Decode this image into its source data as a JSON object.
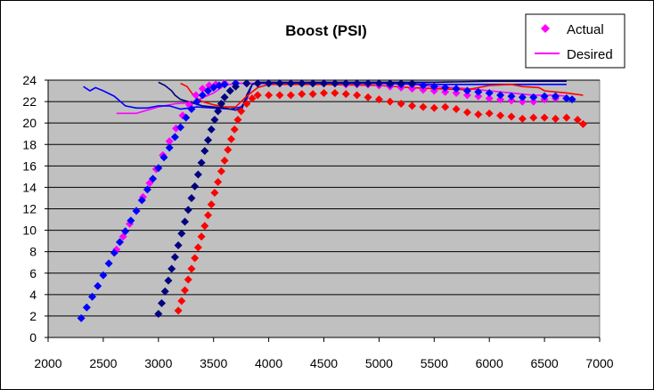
{
  "chart_data": {
    "type": "scatter",
    "title": "Boost (PSI)",
    "xlim": [
      2000,
      7000
    ],
    "ylim": [
      0,
      24
    ],
    "x_ticks": [
      "2000",
      "2500",
      "3000",
      "3500",
      "4000",
      "4500",
      "5000",
      "5500",
      "6000",
      "6500",
      "7000"
    ],
    "y_ticks": [
      "0",
      "2",
      "4",
      "6",
      "8",
      "10",
      "12",
      "14",
      "16",
      "18",
      "20",
      "22",
      "24"
    ],
    "grid": "horizontal",
    "plot_background": "#c0c0c0",
    "legend": {
      "position": "top-right",
      "entries": [
        {
          "label": "Actual",
          "marker": "diamond",
          "color": "#ff00ff"
        },
        {
          "label": "Desired",
          "marker": "line",
          "color": "#ff00ff"
        }
      ]
    },
    "series": [
      {
        "role": "actual",
        "color": "#ff00ff",
        "points": [
          [
            2620,
            8.2
          ],
          [
            2680,
            9.4
          ],
          [
            2740,
            10.6
          ],
          [
            2800,
            11.8
          ],
          [
            2860,
            13.1
          ],
          [
            2920,
            14.4
          ],
          [
            2980,
            15.7
          ],
          [
            3040,
            17.0
          ],
          [
            3100,
            18.3
          ],
          [
            3160,
            19.5
          ],
          [
            3220,
            20.7
          ],
          [
            3280,
            21.7
          ],
          [
            3340,
            22.6
          ],
          [
            3400,
            23.2
          ],
          [
            3460,
            23.5
          ],
          [
            3520,
            23.6
          ],
          [
            3600,
            23.7
          ],
          [
            3700,
            23.7
          ],
          [
            3800,
            23.7
          ],
          [
            3900,
            23.7
          ],
          [
            4000,
            23.7
          ],
          [
            4100,
            23.7
          ],
          [
            4200,
            23.7
          ],
          [
            4300,
            23.7
          ],
          [
            4400,
            23.7
          ],
          [
            4500,
            23.7
          ],
          [
            4600,
            23.7
          ],
          [
            4700,
            23.6
          ],
          [
            4800,
            23.6
          ],
          [
            4900,
            23.6
          ],
          [
            5000,
            23.5
          ],
          [
            5100,
            23.4
          ],
          [
            5200,
            23.3
          ],
          [
            5300,
            23.2
          ],
          [
            5400,
            23.1
          ],
          [
            5500,
            23.0
          ],
          [
            5600,
            22.9
          ],
          [
            5700,
            22.8
          ],
          [
            5800,
            22.6
          ],
          [
            5900,
            22.5
          ],
          [
            6000,
            22.3
          ],
          [
            6100,
            22.2
          ],
          [
            6200,
            22.1
          ],
          [
            6300,
            22.0
          ],
          [
            6400,
            22.0
          ],
          [
            6500,
            22.2
          ],
          [
            6600,
            22.3
          ],
          [
            6700,
            22.3
          ]
        ]
      },
      {
        "role": "actual",
        "color": "#0000ff",
        "points": [
          [
            2300,
            1.8
          ],
          [
            2350,
            2.8
          ],
          [
            2400,
            3.8
          ],
          [
            2450,
            4.8
          ],
          [
            2500,
            5.8
          ],
          [
            2550,
            6.9
          ],
          [
            2600,
            7.9
          ],
          [
            2650,
            8.9
          ],
          [
            2700,
            9.9
          ],
          [
            2750,
            10.9
          ],
          [
            2800,
            11.8
          ],
          [
            2850,
            12.8
          ],
          [
            2900,
            13.8
          ],
          [
            2950,
            14.8
          ],
          [
            3000,
            15.8
          ],
          [
            3050,
            16.8
          ],
          [
            3100,
            17.7
          ],
          [
            3150,
            18.7
          ],
          [
            3200,
            19.6
          ],
          [
            3250,
            20.5
          ],
          [
            3300,
            21.3
          ],
          [
            3350,
            22.0
          ],
          [
            3400,
            22.6
          ],
          [
            3450,
            23.0
          ],
          [
            3500,
            23.3
          ],
          [
            3550,
            23.5
          ],
          [
            3600,
            23.6
          ],
          [
            3700,
            23.7
          ],
          [
            3800,
            23.7
          ],
          [
            3900,
            23.7
          ],
          [
            4000,
            23.7
          ],
          [
            4100,
            23.7
          ],
          [
            4200,
            23.7
          ],
          [
            4300,
            23.7
          ],
          [
            4400,
            23.7
          ],
          [
            4500,
            23.7
          ],
          [
            4600,
            23.7
          ],
          [
            4700,
            23.7
          ],
          [
            4800,
            23.7
          ],
          [
            4900,
            23.7
          ],
          [
            5000,
            23.7
          ],
          [
            5100,
            23.6
          ],
          [
            5200,
            23.6
          ],
          [
            5300,
            23.6
          ],
          [
            5400,
            23.5
          ],
          [
            5500,
            23.4
          ],
          [
            5600,
            23.3
          ],
          [
            5700,
            23.2
          ],
          [
            5800,
            23.0
          ],
          [
            5900,
            22.9
          ],
          [
            6000,
            22.8
          ],
          [
            6100,
            22.6
          ],
          [
            6200,
            22.5
          ],
          [
            6300,
            22.4
          ],
          [
            6400,
            22.4
          ],
          [
            6500,
            22.5
          ],
          [
            6600,
            22.5
          ],
          [
            6700,
            22.3
          ],
          [
            6750,
            22.2
          ]
        ]
      },
      {
        "role": "actual",
        "color": "#000080",
        "points": [
          [
            3000,
            2.2
          ],
          [
            3030,
            3.2
          ],
          [
            3060,
            4.3
          ],
          [
            3090,
            5.3
          ],
          [
            3120,
            6.4
          ],
          [
            3150,
            7.5
          ],
          [
            3180,
            8.6
          ],
          [
            3210,
            9.7
          ],
          [
            3240,
            10.8
          ],
          [
            3270,
            11.9
          ],
          [
            3300,
            13.0
          ],
          [
            3330,
            14.1
          ],
          [
            3360,
            15.2
          ],
          [
            3390,
            16.3
          ],
          [
            3420,
            17.4
          ],
          [
            3450,
            18.4
          ],
          [
            3480,
            19.4
          ],
          [
            3510,
            20.3
          ],
          [
            3540,
            21.1
          ],
          [
            3570,
            21.8
          ],
          [
            3600,
            22.4
          ],
          [
            3650,
            23.0
          ],
          [
            3700,
            23.4
          ],
          [
            3800,
            23.7
          ],
          [
            3900,
            23.7
          ],
          [
            4000,
            23.7
          ],
          [
            4100,
            23.7
          ],
          [
            4200,
            23.7
          ],
          [
            4300,
            23.7
          ],
          [
            4400,
            23.7
          ],
          [
            4500,
            23.7
          ],
          [
            4600,
            23.7
          ],
          [
            4700,
            23.7
          ],
          [
            4800,
            23.7
          ],
          [
            4900,
            23.7
          ],
          [
            5000,
            23.7
          ],
          [
            5100,
            23.7
          ],
          [
            5200,
            23.7
          ],
          [
            5300,
            23.7
          ]
        ]
      },
      {
        "role": "actual",
        "color": "#ff0000",
        "points": [
          [
            3180,
            2.5
          ],
          [
            3210,
            3.4
          ],
          [
            3240,
            4.4
          ],
          [
            3270,
            5.4
          ],
          [
            3300,
            6.4
          ],
          [
            3330,
            7.4
          ],
          [
            3360,
            8.4
          ],
          [
            3390,
            9.4
          ],
          [
            3420,
            10.4
          ],
          [
            3450,
            11.4
          ],
          [
            3480,
            12.4
          ],
          [
            3510,
            13.5
          ],
          [
            3540,
            14.5
          ],
          [
            3570,
            15.5
          ],
          [
            3600,
            16.5
          ],
          [
            3630,
            17.5
          ],
          [
            3660,
            18.5
          ],
          [
            3690,
            19.4
          ],
          [
            3720,
            20.3
          ],
          [
            3750,
            21.1
          ],
          [
            3800,
            21.8
          ],
          [
            3850,
            22.3
          ],
          [
            3900,
            22.6
          ],
          [
            4000,
            22.6
          ],
          [
            4100,
            22.6
          ],
          [
            4200,
            22.6
          ],
          [
            4300,
            22.7
          ],
          [
            4400,
            22.7
          ],
          [
            4500,
            22.8
          ],
          [
            4600,
            22.8
          ],
          [
            4700,
            22.7
          ],
          [
            4800,
            22.6
          ],
          [
            4900,
            22.4
          ],
          [
            5000,
            22.2
          ],
          [
            5100,
            22.0
          ],
          [
            5200,
            21.8
          ],
          [
            5300,
            21.6
          ],
          [
            5400,
            21.5
          ],
          [
            5500,
            21.4
          ],
          [
            5600,
            21.5
          ],
          [
            5700,
            21.3
          ],
          [
            5800,
            21.0
          ],
          [
            5900,
            20.8
          ],
          [
            6000,
            20.9
          ],
          [
            6100,
            20.7
          ],
          [
            6200,
            20.6
          ],
          [
            6300,
            20.4
          ],
          [
            6400,
            20.5
          ],
          [
            6500,
            20.5
          ],
          [
            6600,
            20.4
          ],
          [
            6700,
            20.5
          ],
          [
            6800,
            20.3
          ],
          [
            6850,
            19.9
          ]
        ]
      }
    ],
    "desired": [
      {
        "color": "#ff00ff",
        "points": [
          [
            2620,
            20.9
          ],
          [
            2800,
            20.9
          ],
          [
            3000,
            21.5
          ],
          [
            3150,
            21.8
          ],
          [
            3300,
            21.9
          ],
          [
            3500,
            22.8
          ],
          [
            3600,
            23.5
          ],
          [
            3700,
            23.7
          ],
          [
            3800,
            23.7
          ],
          [
            4000,
            23.7
          ],
          [
            4500,
            23.7
          ],
          [
            5000,
            23.7
          ],
          [
            5300,
            23.6
          ],
          [
            5500,
            23.4
          ],
          [
            5800,
            23.2
          ],
          [
            6000,
            23.0
          ],
          [
            6200,
            22.8
          ],
          [
            6400,
            22.6
          ],
          [
            6600,
            22.6
          ],
          [
            6700,
            22.5
          ]
        ]
      },
      {
        "color": "#0000ff",
        "points": [
          [
            2320,
            23.4
          ],
          [
            2380,
            23.0
          ],
          [
            2430,
            23.3
          ],
          [
            2500,
            23.0
          ],
          [
            2600,
            22.5
          ],
          [
            2700,
            21.6
          ],
          [
            2800,
            21.4
          ],
          [
            2900,
            21.4
          ],
          [
            3000,
            21.6
          ],
          [
            3100,
            21.6
          ],
          [
            3200,
            21.3
          ],
          [
            3350,
            21.5
          ],
          [
            3500,
            21.4
          ],
          [
            3650,
            21.3
          ],
          [
            3750,
            21.5
          ],
          [
            3800,
            22.2
          ],
          [
            3850,
            23.6
          ],
          [
            3900,
            23.7
          ],
          [
            4500,
            23.7
          ],
          [
            5000,
            23.7
          ],
          [
            5500,
            23.6
          ],
          [
            6000,
            23.6
          ],
          [
            6500,
            23.6
          ],
          [
            6700,
            23.6
          ]
        ]
      },
      {
        "color": "#000080",
        "points": [
          [
            3000,
            23.8
          ],
          [
            3060,
            23.5
          ],
          [
            3120,
            23.0
          ],
          [
            3150,
            22.6
          ],
          [
            3200,
            22.2
          ],
          [
            3400,
            21.6
          ],
          [
            3600,
            21.4
          ],
          [
            3700,
            21.2
          ],
          [
            3760,
            21.4
          ],
          [
            3800,
            22.6
          ],
          [
            3850,
            23.6
          ],
          [
            3900,
            23.8
          ],
          [
            4500,
            23.8
          ],
          [
            5000,
            23.8
          ],
          [
            5500,
            23.8
          ],
          [
            6000,
            23.9
          ],
          [
            6500,
            23.9
          ],
          [
            6700,
            23.9
          ]
        ]
      },
      {
        "color": "#ff0000",
        "points": [
          [
            3200,
            23.7
          ],
          [
            3260,
            23.4
          ],
          [
            3330,
            22.4
          ],
          [
            3400,
            22.0
          ],
          [
            3500,
            21.7
          ],
          [
            3600,
            21.5
          ],
          [
            3700,
            21.5
          ],
          [
            3800,
            22.5
          ],
          [
            3900,
            23.3
          ],
          [
            4000,
            23.6
          ],
          [
            4500,
            23.6
          ],
          [
            5000,
            23.5
          ],
          [
            5300,
            23.3
          ],
          [
            5500,
            23.2
          ],
          [
            5800,
            23.1
          ],
          [
            6000,
            23.5
          ],
          [
            6200,
            23.6
          ],
          [
            6300,
            23.4
          ],
          [
            6450,
            23.3
          ],
          [
            6500,
            23.0
          ],
          [
            6700,
            22.8
          ],
          [
            6850,
            22.6
          ]
        ]
      }
    ]
  }
}
